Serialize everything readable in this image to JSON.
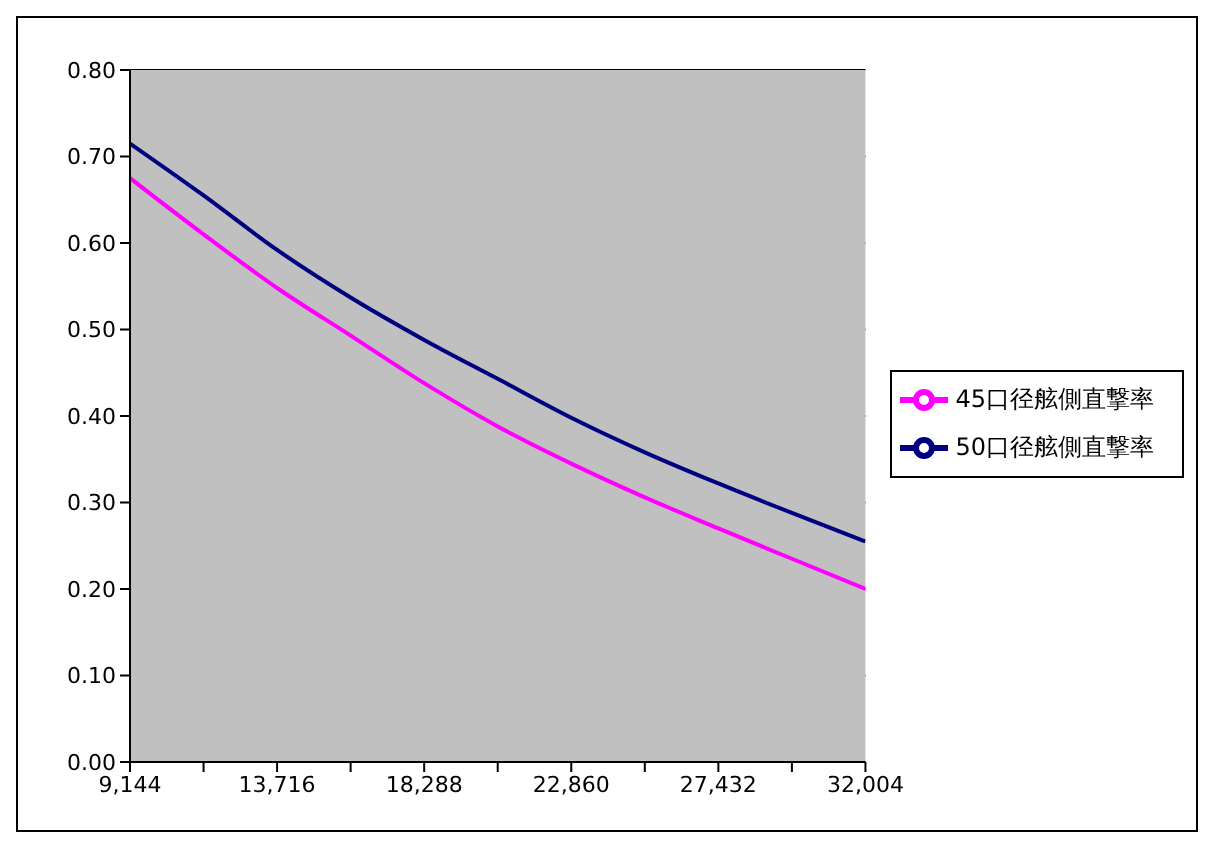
{
  "chart_data": {
    "type": "line",
    "x": [
      9144,
      11430,
      13716,
      16002,
      18288,
      20574,
      22860,
      25146,
      27432,
      29718,
      32004
    ],
    "series": [
      {
        "name": "50口径舷側直撃率",
        "color": "#000080",
        "values": [
          0.715,
          0.655,
          0.592,
          0.537,
          0.488,
          0.443,
          0.398,
          0.358,
          0.322,
          0.288,
          0.255
        ]
      },
      {
        "name": "45口径舷側直撃率",
        "color": "#ff00ff",
        "values": [
          0.675,
          0.61,
          0.548,
          0.493,
          0.438,
          0.388,
          0.345,
          0.306,
          0.27,
          0.235,
          0.2
        ]
      }
    ],
    "xlim": [
      9144,
      32004
    ],
    "xticks": [
      {
        "value": 9144,
        "label": "9,144"
      },
      {
        "value": 11430,
        "label": null
      },
      {
        "value": 13716,
        "label": "13,716"
      },
      {
        "value": 16002,
        "label": null
      },
      {
        "value": 18288,
        "label": "18,288"
      },
      {
        "value": 20574,
        "label": null
      },
      {
        "value": 22860,
        "label": "22,860"
      },
      {
        "value": 25146,
        "label": null
      },
      {
        "value": 27432,
        "label": "27,432"
      },
      {
        "value": 29718,
        "label": null
      },
      {
        "value": 32004,
        "label": "32,004"
      }
    ],
    "ylim": [
      0,
      0.8
    ],
    "yticks": [
      {
        "value": 0,
        "label": "0.00"
      },
      {
        "value": 0.1,
        "label": "0.10"
      },
      {
        "value": 0.2,
        "label": "0.20"
      },
      {
        "value": 0.3,
        "label": "0.30"
      },
      {
        "value": 0.4,
        "label": "0.40"
      },
      {
        "value": 0.5,
        "label": "0.50"
      },
      {
        "value": 0.6,
        "label": "0.60"
      },
      {
        "value": 0.7,
        "label": "0.70"
      },
      {
        "value": 0.8,
        "label": "0.80"
      }
    ],
    "grid": "y",
    "legend": "right",
    "marker": "none",
    "line_style": "solid"
  }
}
